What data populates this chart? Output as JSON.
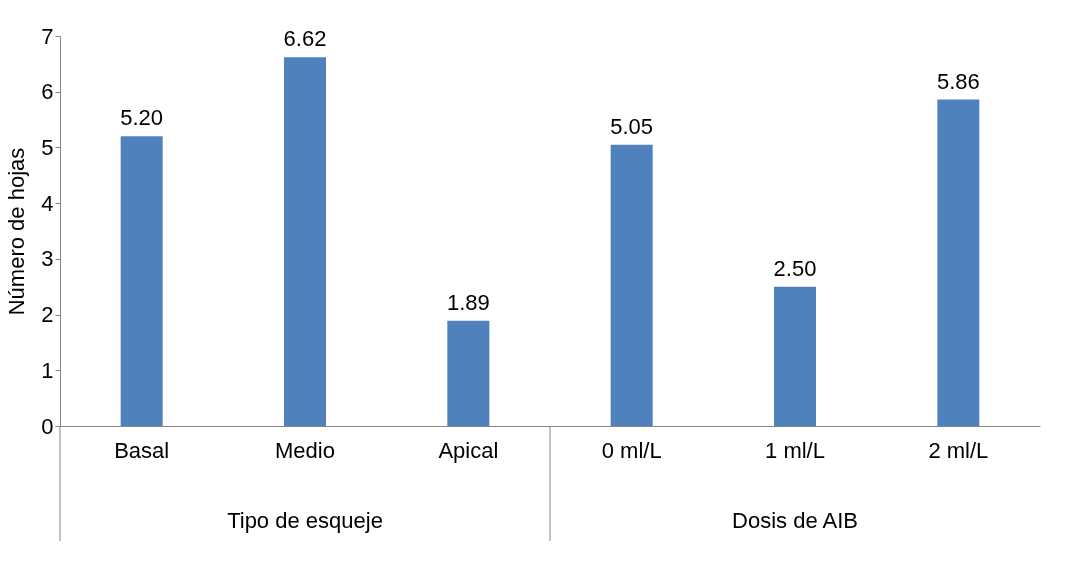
{
  "chart_data": {
    "type": "bar",
    "categories": [
      "Basal",
      "Medio",
      "Apical",
      "0 ml/L",
      "1 ml/L",
      "2 ml/L"
    ],
    "values": [
      5.2,
      6.62,
      1.89,
      5.05,
      2.5,
      5.86
    ],
    "value_labels": [
      "5.20",
      "6.62",
      "1.89",
      "5.05",
      "2.50",
      "5.86"
    ],
    "color": "#4f81bd",
    "ylabel": "Número de hojas",
    "ylim": [
      0,
      7
    ],
    "yticks": [
      0,
      1,
      2,
      3,
      4,
      5,
      6,
      7
    ],
    "grid": false,
    "annotations": [
      "Tipo de esqueje",
      "Dosis de AIB"
    ]
  }
}
